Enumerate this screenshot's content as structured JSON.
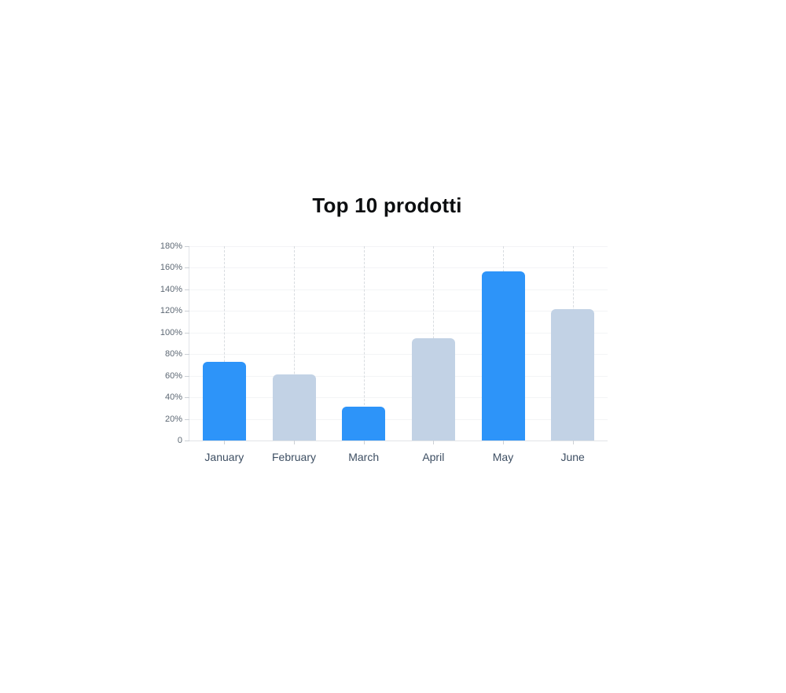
{
  "page": {
    "background_color": "#ffffff"
  },
  "chart_data": {
    "type": "bar",
    "title": "Top 10 prodotti",
    "categories": [
      "January",
      "February",
      "March",
      "April",
      "May",
      "June"
    ],
    "values": [
      73,
      61,
      31,
      95,
      157,
      122
    ],
    "value_unit": "%",
    "series": [
      {
        "name": "",
        "values": [
          73,
          61,
          31,
          95,
          157,
          122
        ]
      }
    ],
    "xlabel": "",
    "ylabel": "",
    "ylim": [
      0,
      180
    ],
    "y_tick_step": 20,
    "y_tick_labels": [
      "180%",
      "160%",
      "140%",
      "120%",
      "100%",
      "80%",
      "60%",
      "40%",
      "20%",
      "0"
    ],
    "legend_position": "none",
    "grid": {
      "horizontal": true,
      "vertical_dashed": true
    },
    "bar_colors": [
      "#2D94F9",
      "#C2D2E5",
      "#2D94F9",
      "#C2D2E5",
      "#2D94F9",
      "#C2D2E5"
    ]
  },
  "colors": {
    "bar_blue": "#2D94F9",
    "bar_light": "#C2D2E5",
    "axis_line": "#e1e4e8",
    "grid_dashed": "#d8dce0",
    "grid_faint": "#f3f4f6",
    "tick_mark": "#ccd0d5",
    "y_label_text": "#5d6874",
    "x_label_text": "#3e4f63",
    "title_text": "#0c0e10"
  }
}
